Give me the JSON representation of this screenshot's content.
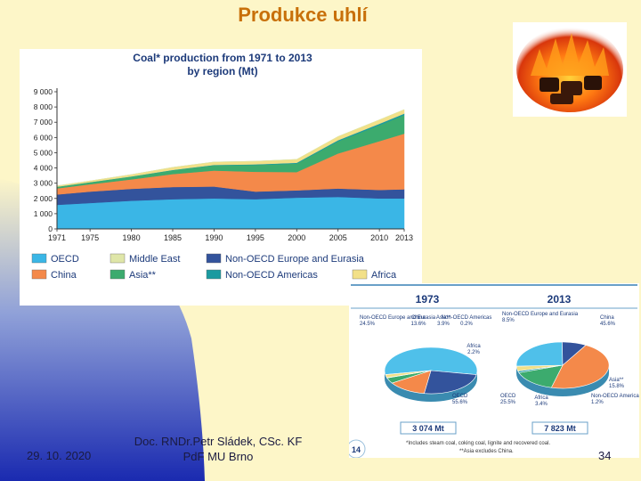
{
  "slide": {
    "title": "Produkce uhlí",
    "date": "29. 10. 2020",
    "author_line1": "Doc. RNDr.Petr Sládek, CSc. KF",
    "author_line2": "PdF MU Brno",
    "page_number": "34",
    "colors": {
      "title": "#c8700a",
      "background": "#fdf6c8",
      "blue_band": "#2233aa"
    }
  },
  "chart_data": [
    {
      "type": "area",
      "stacked": true,
      "title": "Coal* production from 1971 to 2013",
      "subtitle": "by region (Mt)",
      "xlabel": "",
      "ylabel": "",
      "x": [
        1971,
        1975,
        1980,
        1985,
        1990,
        1995,
        2000,
        2005,
        2010,
        2013
      ],
      "x_ticks": [
        "1971",
        "1975",
        "1980",
        "1985",
        "1990",
        "1995",
        "2000",
        "2005",
        "2010",
        "2013"
      ],
      "y_ticks": [
        "0",
        "1 000",
        "2 000",
        "3 000",
        "4 000",
        "5 000",
        "6 000",
        "7 000",
        "8 000",
        "9 000"
      ],
      "ylim": [
        0,
        9000
      ],
      "series": [
        {
          "name": "OECD",
          "color": "#3ab6e6",
          "values": [
            1580,
            1700,
            1850,
            1950,
            2000,
            1950,
            2050,
            2100,
            2000,
            2000
          ]
        },
        {
          "name": "Non-OECD Europe and Eurasia",
          "color": "#33539c",
          "values": [
            680,
            750,
            780,
            800,
            780,
            500,
            480,
            550,
            560,
            600
          ]
        },
        {
          "name": "China",
          "color": "#f4894a",
          "values": [
            400,
            480,
            620,
            850,
            1050,
            1300,
            1200,
            2300,
            3200,
            3650
          ]
        },
        {
          "name": "Asia**",
          "color": "#3cab6e",
          "values": [
            100,
            130,
            180,
            250,
            340,
            450,
            560,
            800,
            1050,
            1220
          ]
        },
        {
          "name": "Non-OECD Americas",
          "color": "#1b9aa0",
          "values": [
            8,
            10,
            15,
            20,
            30,
            40,
            50,
            70,
            90,
            95
          ]
        },
        {
          "name": "Africa",
          "color": "#f2e088",
          "values": [
            60,
            80,
            120,
            170,
            190,
            200,
            220,
            240,
            255,
            260
          ]
        },
        {
          "name": "Middle East",
          "color": "#dfe6a8",
          "values": [
            2,
            3,
            3,
            4,
            4,
            5,
            5,
            6,
            7,
            8
          ]
        }
      ],
      "legend": [
        "OECD",
        "Middle East",
        "Non-OECD Europe and Eurasia",
        "China",
        "Asia**",
        "Non-OECD Americas",
        "Africa"
      ],
      "legend_position": "bottom"
    },
    {
      "type": "pie",
      "title": "1973",
      "total_label": "3 074 Mt",
      "slices": [
        {
          "name": "OECD",
          "label": "OECD",
          "pct_label": "55.6%",
          "value": 55.6,
          "color": "#4fc0ea"
        },
        {
          "name": "Non-OECD Europe and Eurasia",
          "label": "Non-OECD Europe and Eurasia",
          "pct_label": "24.5%",
          "value": 24.5,
          "color": "#33539c"
        },
        {
          "name": "China",
          "label": "China",
          "pct_label": "13.6%",
          "value": 13.6,
          "color": "#f4894a"
        },
        {
          "name": "Asia**",
          "label": "Asia**",
          "pct_label": "3.9%",
          "value": 3.9,
          "color": "#3cab6e"
        },
        {
          "name": "Non-OECD Americas",
          "label": "Non-OECD Americas",
          "pct_label": "0.2%",
          "value": 0.2,
          "color": "#1b9aa0"
        },
        {
          "name": "Africa",
          "label": "Africa",
          "pct_label": "2.2%",
          "value": 2.2,
          "color": "#f2e088"
        }
      ]
    },
    {
      "type": "pie",
      "title": "2013",
      "total_label": "7 823 Mt",
      "slices": [
        {
          "name": "China",
          "label": "China",
          "pct_label": "45.6%",
          "value": 45.6,
          "color": "#f4894a"
        },
        {
          "name": "Asia**",
          "label": "Asia**",
          "pct_label": "15.8%",
          "value": 15.8,
          "color": "#3cab6e"
        },
        {
          "name": "Non-OECD Americas",
          "label": "Non-OECD Americas",
          "pct_label": "1.2%",
          "value": 1.2,
          "color": "#1b9aa0"
        },
        {
          "name": "Africa",
          "label": "Africa",
          "pct_label": "3.4%",
          "value": 3.4,
          "color": "#f2e088"
        },
        {
          "name": "OECD",
          "label": "OECD",
          "pct_label": "25.5%",
          "value": 25.5,
          "color": "#4fc0ea"
        },
        {
          "name": "Non-OECD Europe and Eurasia",
          "label": "Non-OECD Europe and Eurasia",
          "pct_label": "8.5%",
          "value": 8.5,
          "color": "#33539c"
        }
      ]
    }
  ],
  "pie_footnote_1": "*Includes steam coal, coking coal, lignite and recovered coal.",
  "pie_footnote_2": "**Asia excludes China.",
  "pie_page_number": "14"
}
